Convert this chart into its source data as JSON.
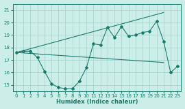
{
  "xlabel": "Humidex (Indice chaleur)",
  "background_color": "#cceee8",
  "grid_color": "#aad4ce",
  "line_color": "#1a7a6e",
  "xlim": [
    -0.5,
    23.5
  ],
  "ylim": [
    14.5,
    21.5
  ],
  "yticks": [
    15,
    16,
    17,
    18,
    19,
    20,
    21
  ],
  "xticks": [
    0,
    1,
    2,
    3,
    4,
    5,
    6,
    7,
    8,
    9,
    10,
    11,
    12,
    13,
    14,
    15,
    16,
    17,
    18,
    19,
    20,
    21,
    22,
    23
  ],
  "curve1_x": [
    0,
    1,
    2,
    3,
    4,
    5,
    6,
    7,
    8,
    9,
    10,
    11,
    12,
    13,
    14,
    15,
    16,
    17,
    18,
    19,
    20,
    21,
    22,
    23
  ],
  "curve1_y": [
    17.6,
    17.7,
    17.7,
    17.2,
    16.1,
    15.1,
    14.8,
    14.7,
    14.7,
    15.3,
    16.4,
    18.3,
    18.2,
    19.6,
    18.8,
    19.7,
    18.9,
    19.0,
    19.2,
    19.3,
    20.1,
    18.5,
    16.0,
    16.5
  ],
  "curve2_x": [
    0,
    21
  ],
  "curve2_y": [
    17.6,
    20.8
  ],
  "curve3_x": [
    0,
    21
  ],
  "curve3_y": [
    17.6,
    16.8
  ],
  "xlabel_fontsize": 6,
  "tick_fontsize": 5
}
